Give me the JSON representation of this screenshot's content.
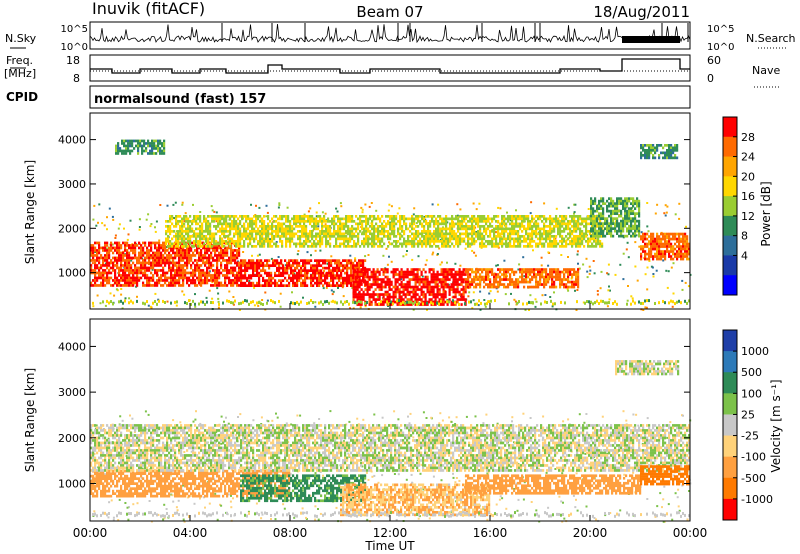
{
  "header": {
    "station": "Inuvik (fitACF)",
    "beam": "Beam 07",
    "date": "18/Aug/2011"
  },
  "panels": {
    "nsky_label": "N.Sky",
    "nsky_ticks": [
      "10^5",
      "10^0"
    ],
    "nsearch_label": "N.Search",
    "nsearch_ticks": [
      "10^5",
      "10^0"
    ],
    "freq_label_1": "Freq.",
    "freq_label_2": "[MHz]",
    "freq_ticks": [
      "18",
      "8"
    ],
    "nave_label": "Nave",
    "nave_ticks": [
      "60",
      "0"
    ],
    "cpid_label": "CPID",
    "cpid_text": "normalsound (fast) 157"
  },
  "axes": {
    "ylabel": "Slant Range [km]",
    "xlabel": "Time UT",
    "yticks": [
      "1000",
      "2000",
      "3000",
      "4000"
    ],
    "xticks": [
      "00:00",
      "04:00",
      "08:00",
      "12:00",
      "16:00",
      "20:00",
      "00:00"
    ]
  },
  "colorbars": {
    "power": {
      "label": "Power [dB]",
      "ticks": [
        "28",
        "24",
        "20",
        "16",
        "12",
        "8",
        "4"
      ],
      "colors": [
        "#ff0000",
        "#ff6a00",
        "#ffa500",
        "#ffd700",
        "#9acd32",
        "#2e8b57",
        "#2d6e9a",
        "#1a3aa8",
        "#0000ff"
      ]
    },
    "velocity": {
      "label": "Velocity [m s⁻¹]",
      "ticks": [
        "1000",
        "500",
        "100",
        "25",
        "-25",
        "-100",
        "-500",
        "-1000"
      ],
      "colors": [
        "#1f3fa8",
        "#2d7ab8",
        "#2e8b57",
        "#7cc24a",
        "#c8c8c8",
        "#ffd27a",
        "#ffa040",
        "#ff7a00",
        "#ff0000"
      ]
    }
  },
  "chart_data": [
    {
      "type": "heatmap",
      "title": "Power",
      "xlabel": "Time UT",
      "ylabel": "Slant Range [km]",
      "xlim": [
        0,
        24
      ],
      "ylim": [
        180,
        4600
      ],
      "colorbar": "Power [dB]",
      "regions": [
        {
          "t0": 0.0,
          "t1": 6.0,
          "r0": 700,
          "r1": 1700,
          "value": 26
        },
        {
          "t0": 6.0,
          "t1": 11.0,
          "r0": 700,
          "r1": 1300,
          "value": 27
        },
        {
          "t0": 10.5,
          "t1": 15.0,
          "r0": 300,
          "r1": 1100,
          "value": 28
        },
        {
          "t0": 15.0,
          "t1": 19.5,
          "r0": 700,
          "r1": 1100,
          "value": 24
        },
        {
          "t0": 3.0,
          "t1": 20.5,
          "r0": 1600,
          "r1": 2300,
          "value": 14
        },
        {
          "t0": 20.0,
          "t1": 22.0,
          "r0": 1800,
          "r1": 2700,
          "value": 10
        },
        {
          "t0": 22.0,
          "t1": 24.0,
          "r0": 1300,
          "r1": 1900,
          "value": 24
        },
        {
          "t0": 1.0,
          "t1": 3.0,
          "r0": 3700,
          "r1": 4000,
          "value": 8
        },
        {
          "t0": 22.0,
          "t1": 23.5,
          "r0": 3600,
          "r1": 3900,
          "value": 8
        }
      ]
    },
    {
      "type": "heatmap",
      "title": "Velocity",
      "xlabel": "Time UT",
      "ylabel": "Slant Range [km]",
      "xlim": [
        0,
        24
      ],
      "ylim": [
        180,
        4600
      ],
      "colorbar": "Velocity [m s⁻¹]",
      "regions": [
        {
          "t0": 0.0,
          "t1": 8.0,
          "r0": 700,
          "r1": 1300,
          "value": -200
        },
        {
          "t0": 6.0,
          "t1": 11.0,
          "r0": 600,
          "r1": 1200,
          "value": 150
        },
        {
          "t0": 10.0,
          "t1": 16.0,
          "r0": 300,
          "r1": 1000,
          "value": -100
        },
        {
          "t0": 15.0,
          "t1": 22.0,
          "r0": 800,
          "r1": 1200,
          "value": -300
        },
        {
          "t0": 0.0,
          "t1": 24.0,
          "r0": 1300,
          "r1": 2300,
          "value": 0
        },
        {
          "t0": 22.0,
          "t1": 24.0,
          "r0": 1000,
          "r1": 1400,
          "value": -600
        },
        {
          "t0": 21.0,
          "t1": 23.5,
          "r0": 3400,
          "r1": 3700,
          "value": 0
        }
      ]
    }
  ]
}
